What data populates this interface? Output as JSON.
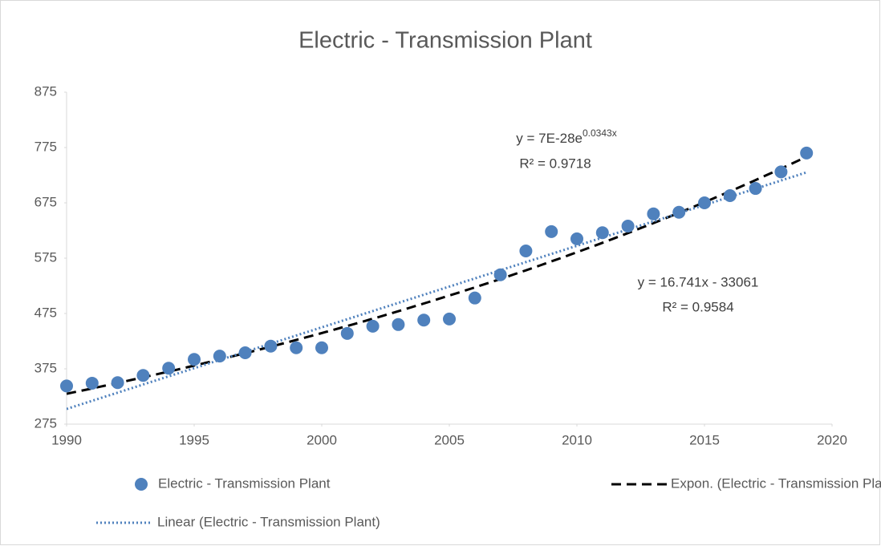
{
  "chart_data": {
    "type": "scatter",
    "title": "Electric - Transmission Plant",
    "series": [
      {
        "name": "Electric - Transmission Plant",
        "color": "#4f81bd",
        "x": [
          1990,
          1991,
          1992,
          1993,
          1994,
          1995,
          1996,
          1997,
          1998,
          1999,
          2000,
          2001,
          2002,
          2003,
          2004,
          2005,
          2006,
          2007,
          2008,
          2009,
          2010,
          2011,
          2012,
          2013,
          2014,
          2015,
          2016,
          2017,
          2018,
          2019
        ],
        "values": [
          344,
          349,
          350,
          363,
          376,
          392,
          398,
          404,
          416,
          413,
          413,
          439,
          452,
          455,
          463,
          465,
          503,
          545,
          588,
          623,
          610,
          621,
          633,
          655,
          658,
          675,
          688,
          701,
          731,
          765
        ]
      }
    ],
    "trendlines": [
      {
        "name": "Expon. (Electric - Transmission Plant)",
        "fit": "exponential",
        "color": "#000000",
        "equation": "y = 7E-28e",
        "equation_exponent": "0.0343x",
        "r_squared": "R² = 0.9718"
      },
      {
        "name": "Linear (Electric - Transmission Plant)",
        "fit": "linear",
        "color": "#4f81bd",
        "equation": "y = 16.741x - 33061",
        "r_squared": "R² = 0.9584"
      }
    ],
    "xlim": [
      1990,
      2020
    ],
    "xticks": [
      1990,
      1995,
      2000,
      2005,
      2010,
      2015,
      2020
    ],
    "ylim": [
      275,
      875
    ],
    "yticks": [
      275,
      375,
      475,
      575,
      675,
      775,
      875
    ],
    "grid": false,
    "legend": "bottom"
  }
}
